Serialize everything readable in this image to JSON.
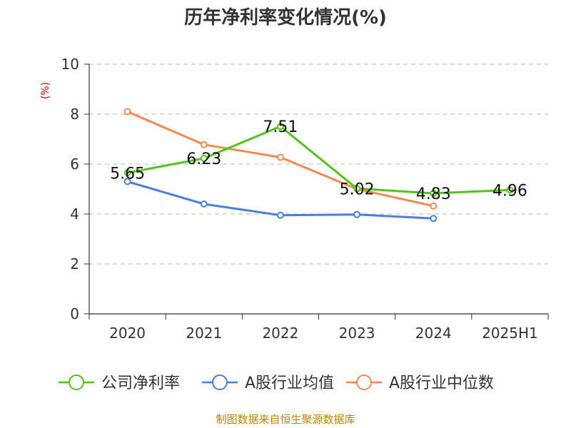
{
  "title": "历年净利率变化情况(%)",
  "source": "制图数据来自恒生聚源数据库",
  "chart_data": {
    "type": "line",
    "title": "历年净利率变化情况(%)",
    "ylabel": "(%)",
    "ylim": [
      0,
      10
    ],
    "yticks": [
      0,
      2,
      4,
      6,
      8,
      10
    ],
    "grid": true,
    "legend_position": "bottom",
    "categories": [
      "2020",
      "2021",
      "2022",
      "2023",
      "2024",
      "2025H1"
    ],
    "series": [
      {
        "name": "公司净利率",
        "color": "#52c41a",
        "values": [
          5.65,
          6.23,
          7.51,
          5.02,
          4.83,
          4.96
        ],
        "labels": [
          "5.65",
          "6.23",
          "7.51",
          "5.02",
          "4.83",
          "4.96"
        ]
      },
      {
        "name": "A股行业均值",
        "color": "#4a7fdc",
        "values": [
          5.3,
          4.4,
          3.95,
          3.98,
          3.82,
          null
        ]
      },
      {
        "name": "A股行业中位数",
        "color": "#f5894f",
        "values": [
          8.1,
          6.78,
          6.27,
          5.0,
          4.32,
          null
        ]
      }
    ]
  }
}
